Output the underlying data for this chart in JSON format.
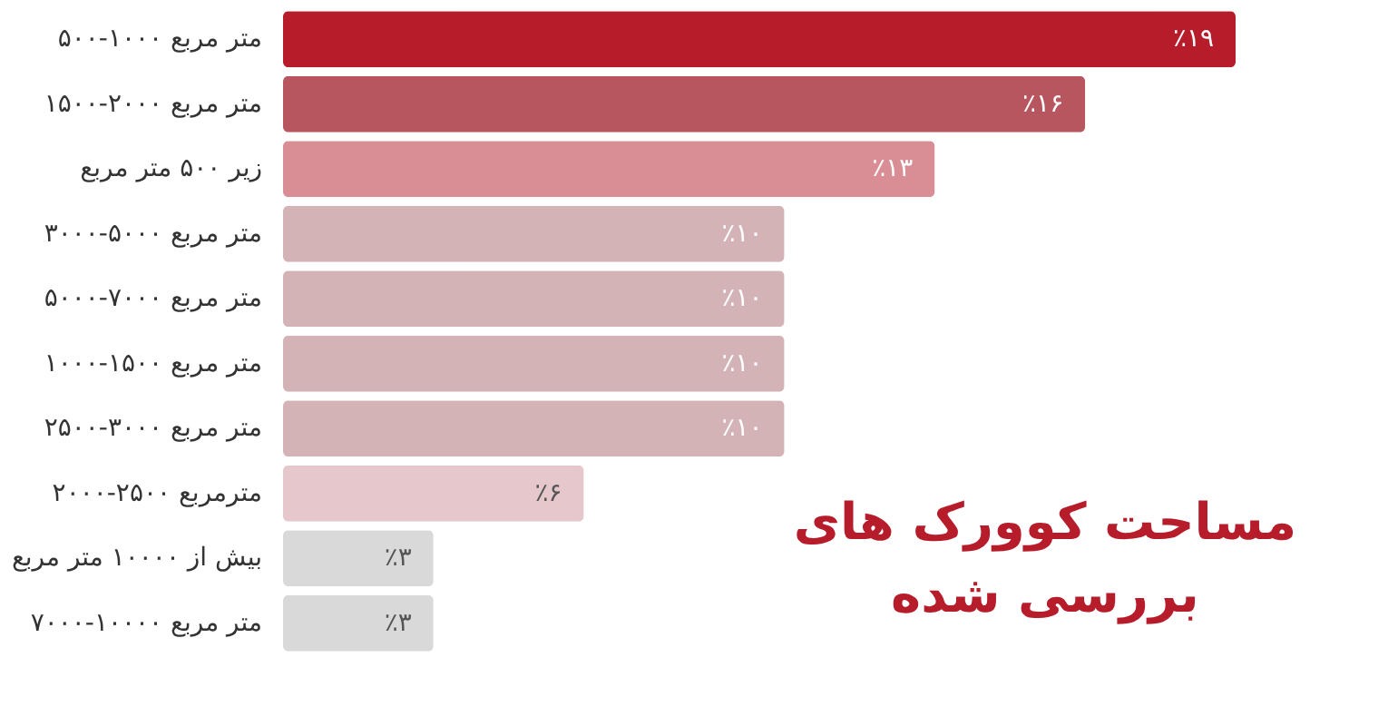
{
  "chart_data": {
    "type": "bar",
    "orientation": "horizontal",
    "title": "مساحت کوورک های بررسی شده",
    "categories": [
      "۵۰۰-۱۰۰۰ متر مربع",
      "۱۵۰۰-۲۰۰۰ متر مربع",
      "زیر ۵۰۰ متر مربع",
      "۳۰۰۰-۵۰۰۰ متر مربع",
      "۵۰۰۰-۷۰۰۰ متر مربع",
      "۱۰۰۰-۱۵۰۰ متر مربع",
      "۲۵۰۰-۳۰۰۰ متر مربع",
      "۲۰۰۰-۲۵۰۰ مترمربع",
      "بیش از ۱۰۰۰۰ متر مربع",
      "۷۰۰۰-۱۰۰۰۰ متر مربع"
    ],
    "values": [
      19,
      16,
      13,
      10,
      10,
      10,
      10,
      6,
      3,
      3
    ],
    "value_labels": [
      "٪۱۹",
      "٪۱۶",
      "٪۱۳",
      "٪۱۰",
      "٪۱۰",
      "٪۱۰",
      "٪۱۰",
      "٪۶",
      "٪۳",
      "٪۳"
    ],
    "colors": [
      "#b71c2b",
      "#b8565f",
      "#d98d95",
      "#d4b3b7",
      "#d4b3b7",
      "#d4b3b7",
      "#d4b3b7",
      "#e6c8cc",
      "#d9d9d9",
      "#d9d9d9"
    ]
  }
}
